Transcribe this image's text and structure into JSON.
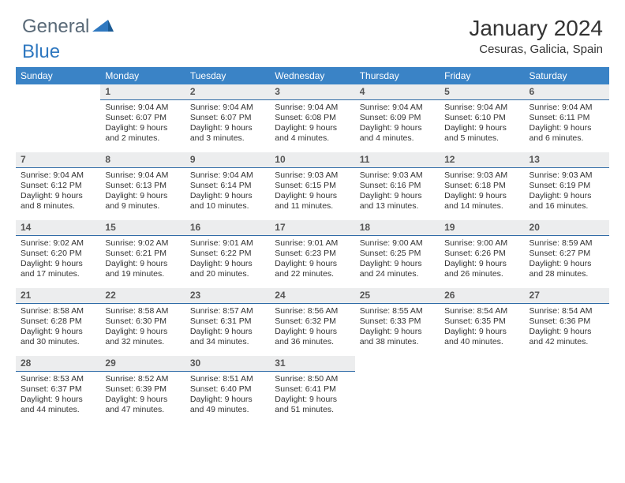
{
  "brand": {
    "text1": "General",
    "text2": "Blue",
    "color1": "#5a6a78",
    "color2": "#2f78c0"
  },
  "title": "January 2024",
  "location": "Cesuras, Galicia, Spain",
  "header_bg": "#3a83c6",
  "daynum_bg": "#ecedee",
  "daynum_border": "#2e6aa6",
  "weekdays": [
    "Sunday",
    "Monday",
    "Tuesday",
    "Wednesday",
    "Thursday",
    "Friday",
    "Saturday"
  ],
  "start_offset": 1,
  "days": [
    {
      "n": 1,
      "sr": "9:04 AM",
      "ss": "6:07 PM",
      "dl": "9 hours and 2 minutes."
    },
    {
      "n": 2,
      "sr": "9:04 AM",
      "ss": "6:07 PM",
      "dl": "9 hours and 3 minutes."
    },
    {
      "n": 3,
      "sr": "9:04 AM",
      "ss": "6:08 PM",
      "dl": "9 hours and 4 minutes."
    },
    {
      "n": 4,
      "sr": "9:04 AM",
      "ss": "6:09 PM",
      "dl": "9 hours and 4 minutes."
    },
    {
      "n": 5,
      "sr": "9:04 AM",
      "ss": "6:10 PM",
      "dl": "9 hours and 5 minutes."
    },
    {
      "n": 6,
      "sr": "9:04 AM",
      "ss": "6:11 PM",
      "dl": "9 hours and 6 minutes."
    },
    {
      "n": 7,
      "sr": "9:04 AM",
      "ss": "6:12 PM",
      "dl": "9 hours and 8 minutes."
    },
    {
      "n": 8,
      "sr": "9:04 AM",
      "ss": "6:13 PM",
      "dl": "9 hours and 9 minutes."
    },
    {
      "n": 9,
      "sr": "9:04 AM",
      "ss": "6:14 PM",
      "dl": "9 hours and 10 minutes."
    },
    {
      "n": 10,
      "sr": "9:03 AM",
      "ss": "6:15 PM",
      "dl": "9 hours and 11 minutes."
    },
    {
      "n": 11,
      "sr": "9:03 AM",
      "ss": "6:16 PM",
      "dl": "9 hours and 13 minutes."
    },
    {
      "n": 12,
      "sr": "9:03 AM",
      "ss": "6:18 PM",
      "dl": "9 hours and 14 minutes."
    },
    {
      "n": 13,
      "sr": "9:03 AM",
      "ss": "6:19 PM",
      "dl": "9 hours and 16 minutes."
    },
    {
      "n": 14,
      "sr": "9:02 AM",
      "ss": "6:20 PM",
      "dl": "9 hours and 17 minutes."
    },
    {
      "n": 15,
      "sr": "9:02 AM",
      "ss": "6:21 PM",
      "dl": "9 hours and 19 minutes."
    },
    {
      "n": 16,
      "sr": "9:01 AM",
      "ss": "6:22 PM",
      "dl": "9 hours and 20 minutes."
    },
    {
      "n": 17,
      "sr": "9:01 AM",
      "ss": "6:23 PM",
      "dl": "9 hours and 22 minutes."
    },
    {
      "n": 18,
      "sr": "9:00 AM",
      "ss": "6:25 PM",
      "dl": "9 hours and 24 minutes."
    },
    {
      "n": 19,
      "sr": "9:00 AM",
      "ss": "6:26 PM",
      "dl": "9 hours and 26 minutes."
    },
    {
      "n": 20,
      "sr": "8:59 AM",
      "ss": "6:27 PM",
      "dl": "9 hours and 28 minutes."
    },
    {
      "n": 21,
      "sr": "8:58 AM",
      "ss": "6:28 PM",
      "dl": "9 hours and 30 minutes."
    },
    {
      "n": 22,
      "sr": "8:58 AM",
      "ss": "6:30 PM",
      "dl": "9 hours and 32 minutes."
    },
    {
      "n": 23,
      "sr": "8:57 AM",
      "ss": "6:31 PM",
      "dl": "9 hours and 34 minutes."
    },
    {
      "n": 24,
      "sr": "8:56 AM",
      "ss": "6:32 PM",
      "dl": "9 hours and 36 minutes."
    },
    {
      "n": 25,
      "sr": "8:55 AM",
      "ss": "6:33 PM",
      "dl": "9 hours and 38 minutes."
    },
    {
      "n": 26,
      "sr": "8:54 AM",
      "ss": "6:35 PM",
      "dl": "9 hours and 40 minutes."
    },
    {
      "n": 27,
      "sr": "8:54 AM",
      "ss": "6:36 PM",
      "dl": "9 hours and 42 minutes."
    },
    {
      "n": 28,
      "sr": "8:53 AM",
      "ss": "6:37 PM",
      "dl": "9 hours and 44 minutes."
    },
    {
      "n": 29,
      "sr": "8:52 AM",
      "ss": "6:39 PM",
      "dl": "9 hours and 47 minutes."
    },
    {
      "n": 30,
      "sr": "8:51 AM",
      "ss": "6:40 PM",
      "dl": "9 hours and 49 minutes."
    },
    {
      "n": 31,
      "sr": "8:50 AM",
      "ss": "6:41 PM",
      "dl": "9 hours and 51 minutes."
    }
  ],
  "labels": {
    "sunrise": "Sunrise: ",
    "sunset": "Sunset: ",
    "daylight": "Daylight: "
  }
}
